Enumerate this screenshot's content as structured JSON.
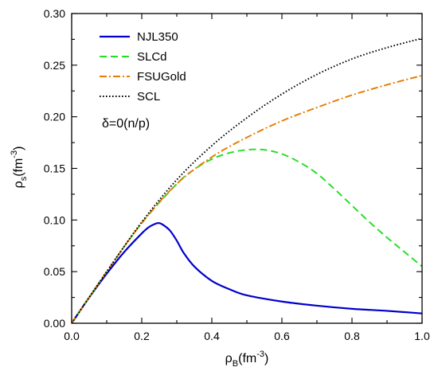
{
  "chart_data": {
    "type": "line",
    "xlabel": {
      "main": "ρ",
      "sub": "B",
      "unit_open": "(fm",
      "unit_sup": "-3",
      "unit_close": ")"
    },
    "ylabel": {
      "main": "ρ",
      "sub": "s",
      "unit_open": "(fm",
      "unit_sup": "-3",
      "unit_close": ")"
    },
    "xlim": [
      0.0,
      1.0
    ],
    "ylim": [
      0.0,
      0.3
    ],
    "xticks": [
      0.0,
      0.2,
      0.4,
      0.6,
      0.8,
      1.0
    ],
    "xtick_labels": [
      "0.0",
      "0.2",
      "0.4",
      "0.6",
      "0.8",
      "1.0"
    ],
    "yticks": [
      0.0,
      0.05,
      0.1,
      0.15,
      0.2,
      0.25,
      0.3
    ],
    "ytick_labels": [
      "0.00",
      "0.05",
      "0.10",
      "0.15",
      "0.20",
      "0.25",
      "0.30"
    ],
    "grid": false,
    "legend_position": "top-left",
    "annotation": "δ=0(n/p)",
    "series": [
      {
        "name": "NJL350",
        "color": "#0000cc",
        "style": "solid",
        "x": [
          0.0,
          0.05,
          0.1,
          0.15,
          0.2,
          0.22,
          0.24,
          0.25,
          0.26,
          0.28,
          0.3,
          0.32,
          0.35,
          0.4,
          0.45,
          0.5,
          0.6,
          0.7,
          0.8,
          0.9,
          1.0
        ],
        "y": [
          0.0,
          0.025,
          0.048,
          0.069,
          0.087,
          0.093,
          0.0965,
          0.097,
          0.0955,
          0.09,
          0.08,
          0.068,
          0.055,
          0.041,
          0.033,
          0.027,
          0.021,
          0.017,
          0.014,
          0.012,
          0.0095
        ]
      },
      {
        "name": "SLCd",
        "color": "#22dd22",
        "style": "dashed",
        "x": [
          0.0,
          0.1,
          0.2,
          0.3,
          0.35,
          0.4,
          0.45,
          0.5,
          0.55,
          0.6,
          0.65,
          0.7,
          0.75,
          0.8,
          0.85,
          0.9,
          0.95,
          1.0
        ],
        "y": [
          0.0,
          0.05,
          0.097,
          0.135,
          0.149,
          0.159,
          0.165,
          0.168,
          0.168,
          0.164,
          0.156,
          0.145,
          0.13,
          0.114,
          0.098,
          0.083,
          0.069,
          0.055
        ]
      },
      {
        "name": "FSUGold",
        "color": "#e87a00",
        "style": "dash-dot",
        "x": [
          0.0,
          0.1,
          0.2,
          0.3,
          0.4,
          0.5,
          0.6,
          0.7,
          0.8,
          0.9,
          1.0
        ],
        "y": [
          0.0,
          0.05,
          0.097,
          0.135,
          0.161,
          0.18,
          0.196,
          0.209,
          0.221,
          0.231,
          0.24
        ]
      },
      {
        "name": "SCL",
        "color": "#000000",
        "style": "dotted",
        "x": [
          0.0,
          0.1,
          0.2,
          0.3,
          0.4,
          0.5,
          0.6,
          0.7,
          0.8,
          0.9,
          1.0
        ],
        "y": [
          0.0,
          0.05,
          0.098,
          0.139,
          0.172,
          0.199,
          0.222,
          0.241,
          0.256,
          0.267,
          0.276
        ]
      }
    ]
  }
}
